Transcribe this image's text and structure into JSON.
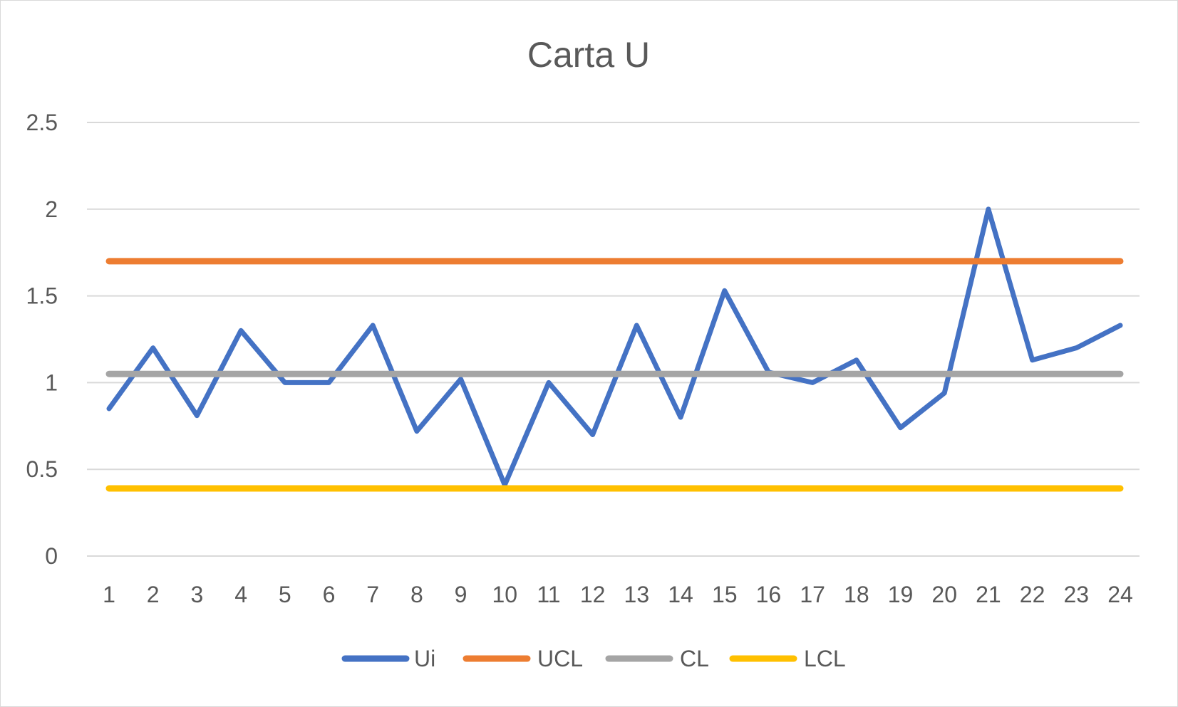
{
  "chart_data": {
    "type": "line",
    "title": "Carta U",
    "xlabel": "",
    "ylabel": "",
    "categories": [
      "1",
      "2",
      "3",
      "4",
      "5",
      "6",
      "7",
      "8",
      "9",
      "10",
      "11",
      "12",
      "13",
      "14",
      "15",
      "16",
      "17",
      "18",
      "19",
      "20",
      "21",
      "22",
      "23",
      "24"
    ],
    "y_ticks": [
      "0",
      "0.5",
      "1",
      "1.5",
      "2",
      "2.5"
    ],
    "ylim": [
      0,
      2.5
    ],
    "grid": "horizontal",
    "legend_position": "bottom",
    "series": [
      {
        "name": "Ui",
        "color": "#4472C4",
        "values": [
          0.85,
          1.2,
          0.81,
          1.3,
          1.0,
          1.0,
          1.33,
          0.72,
          1.02,
          0.41,
          1.0,
          0.7,
          1.33,
          0.8,
          1.53,
          1.06,
          1.0,
          1.13,
          0.74,
          0.94,
          2.0,
          1.13,
          1.2,
          1.33
        ]
      },
      {
        "name": "UCL",
        "color": "#ED7D31",
        "values": [
          1.7,
          1.7,
          1.7,
          1.7,
          1.7,
          1.7,
          1.7,
          1.7,
          1.7,
          1.7,
          1.7,
          1.7,
          1.7,
          1.7,
          1.7,
          1.7,
          1.7,
          1.7,
          1.7,
          1.7,
          1.7,
          1.7,
          1.7,
          1.7
        ]
      },
      {
        "name": "CL",
        "color": "#A5A5A5",
        "values": [
          1.05,
          1.05,
          1.05,
          1.05,
          1.05,
          1.05,
          1.05,
          1.05,
          1.05,
          1.05,
          1.05,
          1.05,
          1.05,
          1.05,
          1.05,
          1.05,
          1.05,
          1.05,
          1.05,
          1.05,
          1.05,
          1.05,
          1.05,
          1.05
        ]
      },
      {
        "name": "LCL",
        "color": "#FFC000",
        "values": [
          0.39,
          0.39,
          0.39,
          0.39,
          0.39,
          0.39,
          0.39,
          0.39,
          0.39,
          0.39,
          0.39,
          0.39,
          0.39,
          0.39,
          0.39,
          0.39,
          0.39,
          0.39,
          0.39,
          0.39,
          0.39,
          0.39,
          0.39,
          0.39
        ]
      }
    ],
    "grid_color": "#d9d9d9",
    "text_color": "#595959"
  }
}
